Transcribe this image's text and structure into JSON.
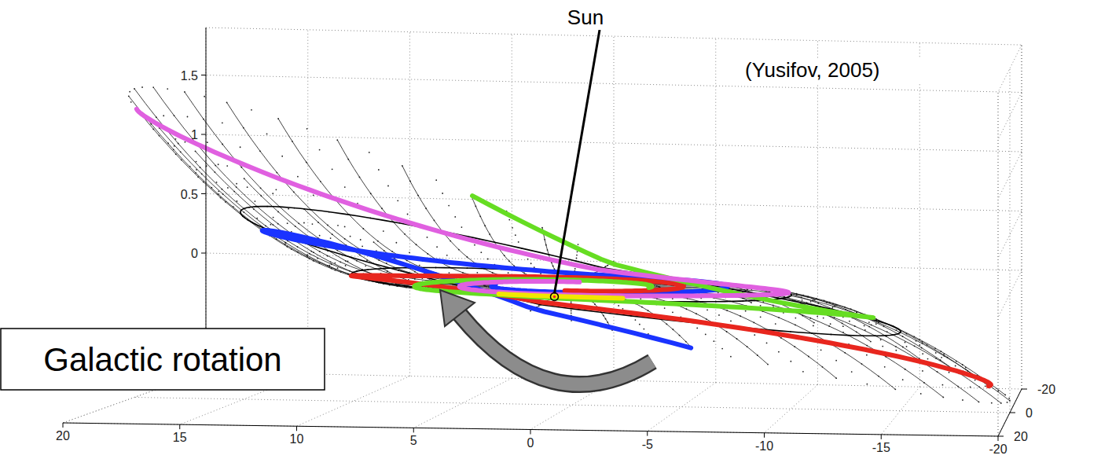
{
  "chart_data": {
    "type": "surface3d",
    "xlim": [
      -20,
      20
    ],
    "ylim": [
      -20,
      20
    ],
    "zlim": [
      -1,
      1.9
    ],
    "xticks": [
      20,
      15,
      10,
      5,
      0,
      -5,
      -10,
      -15,
      -20
    ],
    "yticks": [
      -20,
      0,
      20
    ],
    "zticks": [
      0,
      0.5,
      1,
      1.5
    ],
    "grid": true,
    "annotations": [
      {
        "text": "Sun",
        "x": 0,
        "y": 8.5,
        "z": 0
      },
      {
        "text": "(Yusifov, 2005)"
      },
      {
        "text": "Galactic rotation"
      }
    ]
  }
}
